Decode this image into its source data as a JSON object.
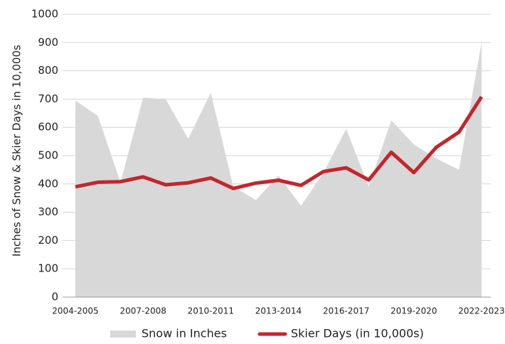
{
  "chart_data": {
    "type": "area-line",
    "y_label": "Inches of Snow & Skier Days in 10,000s",
    "categories": [
      "2004-2005",
      null,
      null,
      "2007-2008",
      null,
      null,
      "2010-2011",
      null,
      null,
      "2013-2014",
      null,
      null,
      "2016-2017",
      null,
      null,
      "2019-2020",
      null,
      null,
      "2022-2023"
    ],
    "series": [
      {
        "name": "Snow in Inches",
        "kind": "area",
        "color": "#d9d8d8",
        "values": [
          695,
          640,
          405,
          705,
          700,
          560,
          722,
          390,
          343,
          430,
          323,
          440,
          595,
          390,
          625,
          540,
          490,
          450,
          900
        ]
      },
      {
        "name": "Skier Days (in 10,000s)",
        "kind": "line",
        "color": "#c1272d",
        "values": [
          390,
          406,
          408,
          425,
          397,
          404,
          421,
          384,
          403,
          413,
          395,
          444,
          457,
          414,
          512,
          440,
          530,
          583,
          708
        ]
      }
    ],
    "ylim": [
      0,
      1000
    ],
    "yticks": [
      0,
      100,
      200,
      300,
      400,
      500,
      600,
      700,
      800,
      900,
      1000
    ],
    "grid": true
  }
}
